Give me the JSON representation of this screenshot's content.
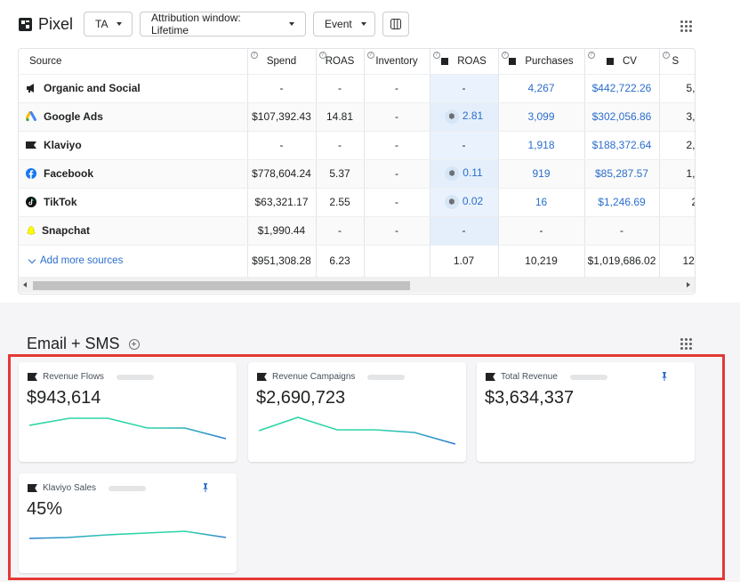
{
  "header": {
    "title": "Pixel",
    "ta_label": "TA",
    "attribution_label": "Attribution window: Lifetime",
    "event_label": "Event"
  },
  "table": {
    "columns": [
      "Source",
      "Spend",
      "ROAS",
      "Inventory",
      "ROAS",
      "Purchases",
      "CV",
      "S"
    ],
    "rows": [
      {
        "source": "Organic and Social",
        "spend": "-",
        "roas": "-",
        "inventory": "-",
        "roas2": "-",
        "purchases": "4,267",
        "cv": "$442,722.26",
        "s": "5,"
      },
      {
        "source": "Google Ads",
        "spend": "$107,392.43",
        "roas": "14.81",
        "inventory": "-",
        "roas2": "2.81",
        "purchases": "3,099",
        "cv": "$302,056.86",
        "s": "3,"
      },
      {
        "source": "Klaviyo",
        "spend": "-",
        "roas": "-",
        "inventory": "-",
        "roas2": "-",
        "purchases": "1,918",
        "cv": "$188,372.64",
        "s": "2,"
      },
      {
        "source": "Facebook",
        "spend": "$778,604.24",
        "roas": "5.37",
        "inventory": "-",
        "roas2": "0.11",
        "purchases": "919",
        "cv": "$85,287.57",
        "s": "1,"
      },
      {
        "source": "TikTok",
        "spend": "$63,321.17",
        "roas": "2.55",
        "inventory": "-",
        "roas2": "0.02",
        "purchases": "16",
        "cv": "$1,246.69",
        "s": "2"
      },
      {
        "source": "Snapchat",
        "spend": "$1,990.44",
        "roas": "-",
        "inventory": "-",
        "roas2": "-",
        "purchases": "-",
        "cv": "-",
        "s": ""
      }
    ],
    "footer": {
      "add_more": "Add more sources",
      "spend": "$951,308.28",
      "roas": "6.23",
      "inventory": "",
      "roas2": "1.07",
      "purchases": "10,219",
      "cv": "$1,019,686.02",
      "s": "12,"
    }
  },
  "email_sms": {
    "title": "Email + SMS",
    "cards": [
      {
        "title": "Revenue Flows",
        "value": "$943,614"
      },
      {
        "title": "Revenue Campaigns",
        "value": "$2,690,723"
      },
      {
        "title": "Total Revenue",
        "value": "$3,634,337"
      },
      {
        "title": "Klaviyo Sales",
        "value": "45%"
      }
    ]
  },
  "colors": {
    "accent_blue": "#2c6ecb",
    "spark_green": "#2dd4a7",
    "spark_blue": "#2b7fd6",
    "highlight_red": "#e53935"
  }
}
